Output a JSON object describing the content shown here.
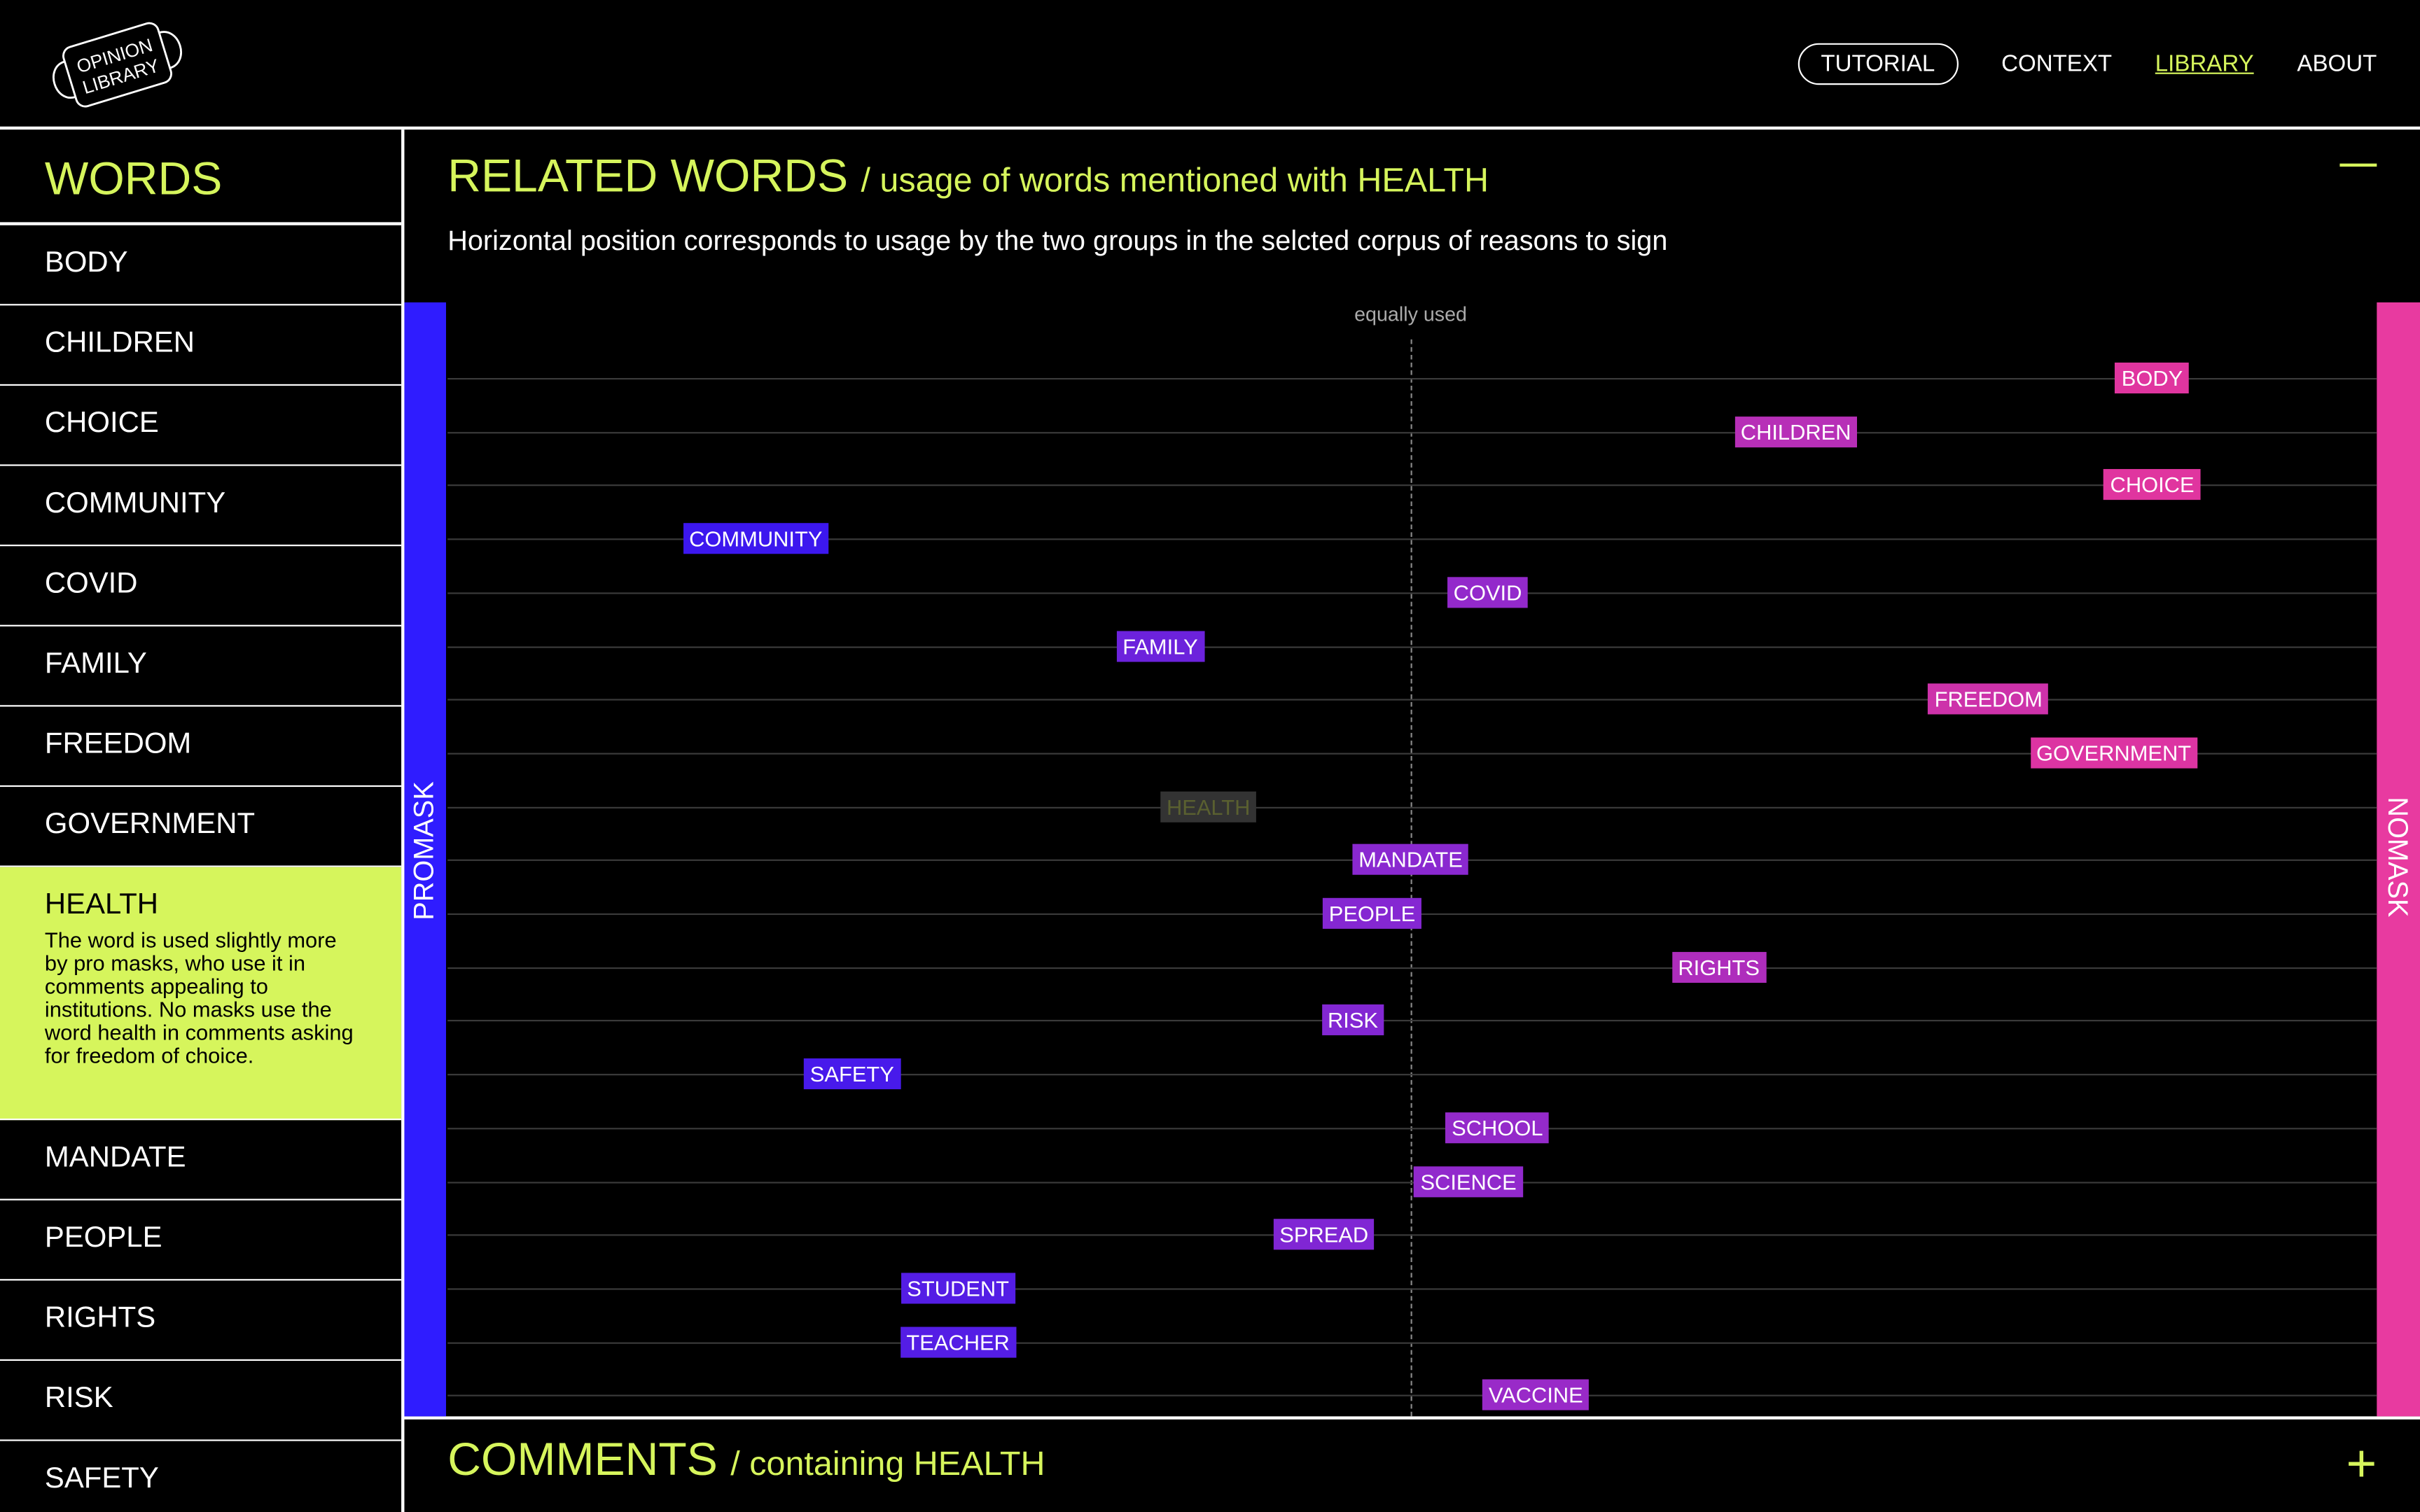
{
  "logo": {
    "line1": "OPINION",
    "line2": "LIBRARY"
  },
  "nav": [
    {
      "label": "TUTORIAL"
    },
    {
      "label": "CONTEXT"
    },
    {
      "label": "LIBRARY"
    },
    {
      "label": "ABOUT"
    }
  ],
  "sidebar": {
    "title": "WORDS",
    "items": [
      {
        "label": "BODY"
      },
      {
        "label": "CHILDREN"
      },
      {
        "label": "CHOICE"
      },
      {
        "label": "COMMUNITY"
      },
      {
        "label": "COVID"
      },
      {
        "label": "FAMILY"
      },
      {
        "label": "FREEDOM"
      },
      {
        "label": "GOVERNMENT"
      },
      {
        "label": "HEALTH",
        "selected": true,
        "description": "The word is used slightly more by pro masks, who use it in comments appealing to institutions. No masks use the word health in comments asking for freedom of choice."
      },
      {
        "label": "MANDATE"
      },
      {
        "label": "PEOPLE"
      },
      {
        "label": "RIGHTS"
      },
      {
        "label": "RISK"
      },
      {
        "label": "SAFETY"
      }
    ]
  },
  "related": {
    "title": "RELATED WORDS",
    "subtitle": "/ usage of words mentioned with HEALTH",
    "description": "Horizontal position corresponds to usage by the two groups in the selcted corpus of reasons to sign"
  },
  "comments": {
    "title": "COMMENTS",
    "subtitle": "/ containing HEALTH"
  },
  "colors": {
    "accent": "#d6f55c",
    "promask": "#2f1cff",
    "nomask": "#e83aa0",
    "mid": "#8a28d0"
  },
  "chart_data": {
    "type": "scatter",
    "left_label": "PROMASK",
    "right_label": "NOMASK",
    "center_label": "equally used",
    "xlim": [
      -1,
      1
    ],
    "points": [
      {
        "word": "BODY",
        "x": 0.77
      },
      {
        "word": "CHILDREN",
        "x": 0.4
      },
      {
        "word": "CHOICE",
        "x": 0.77
      },
      {
        "word": "COMMUNITY",
        "x": -0.68
      },
      {
        "word": "COVID",
        "x": 0.08
      },
      {
        "word": "FAMILY",
        "x": -0.26
      },
      {
        "word": "FREEDOM",
        "x": 0.6
      },
      {
        "word": "GOVERNMENT",
        "x": 0.73
      },
      {
        "word": "HEALTH",
        "x": -0.21,
        "selected": true
      },
      {
        "word": "MANDATE",
        "x": 0.0
      },
      {
        "word": "PEOPLE",
        "x": -0.04
      },
      {
        "word": "RIGHTS",
        "x": 0.32
      },
      {
        "word": "RISK",
        "x": -0.06
      },
      {
        "word": "SAFETY",
        "x": -0.58
      },
      {
        "word": "SCHOOL",
        "x": 0.09
      },
      {
        "word": "SCIENCE",
        "x": 0.06
      },
      {
        "word": "SPREAD",
        "x": -0.09
      },
      {
        "word": "STUDENT",
        "x": -0.47
      },
      {
        "word": "TEACHER",
        "x": -0.47
      },
      {
        "word": "VACCINE",
        "x": 0.13
      }
    ]
  }
}
